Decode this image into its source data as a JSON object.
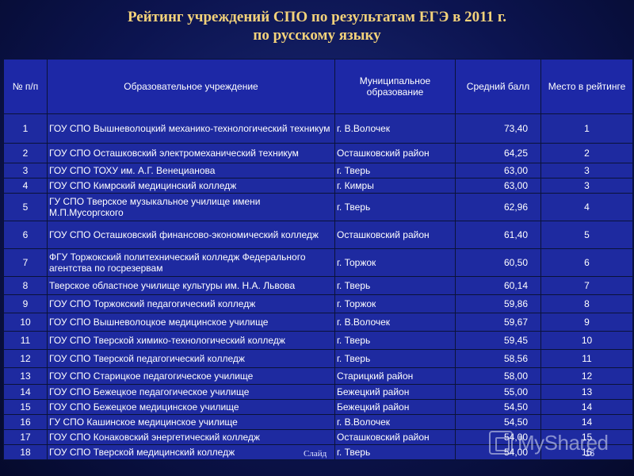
{
  "title": {
    "line1": "Рейтинг учреждений СПО по результатам ЕГЭ в 2011 г.",
    "line2": "по русскому языку"
  },
  "table": {
    "headers": [
      "№ п/п",
      "Образовательное учреждение",
      "Муниципальное образование",
      "Средний балл",
      "Место в рейтинге"
    ],
    "rows": [
      {
        "num": "1",
        "name": "ГОУ СПО Вышневолоцкий механико-технологический техникум",
        "mun": "г. В.Волочек",
        "score": "73,40",
        "place": "1"
      },
      {
        "num": "2",
        "name": "ГОУ СПО Осташковский электромеханический техникум",
        "mun": "Осташковский район",
        "score": "64,25",
        "place": "2"
      },
      {
        "num": "3",
        "name": "ГОУ СПО ТОХУ им. А.Г. Венецианова",
        "mun": "г. Тверь",
        "score": "63,00",
        "place": "3"
      },
      {
        "num": "4",
        "name": "ГОУ СПО Кимрский медицинский колледж",
        "mun": "г. Кимры",
        "score": "63,00",
        "place": "3"
      },
      {
        "num": "5",
        "name": "ГУ СПО Тверское музыкальное училище имени М.П.Мусоргского",
        "mun": "г. Тверь",
        "score": "62,96",
        "place": "4"
      },
      {
        "num": "6",
        "name": "ГОУ СПО Осташковский финансово-экономический колледж",
        "mun": "Осташковский район",
        "score": "61,40",
        "place": "5"
      },
      {
        "num": "7",
        "name": "ФГУ Торжокский политехнический колледж Федерального агентства по госрезервам",
        "mun": "г. Торжок",
        "score": "60,50",
        "place": "6"
      },
      {
        "num": "8",
        "name": "Тверское областное училище культуры им. Н.А. Львова",
        "mun": "г. Тверь",
        "score": "60,14",
        "place": "7"
      },
      {
        "num": "9",
        "name": "ГОУ СПО Торжокский педагогический колледж",
        "mun": "г. Торжок",
        "score": "59,86",
        "place": "8"
      },
      {
        "num": "10",
        "name": "ГОУ СПО Вышневолоцкое медицинское училище",
        "mun": "г. В.Волочек",
        "score": "59,67",
        "place": "9"
      },
      {
        "num": "11",
        "name": "ГОУ СПО Тверской химико-технологический колледж",
        "mun": "г. Тверь",
        "score": "59,45",
        "place": "10"
      },
      {
        "num": "12",
        "name": "ГОУ СПО Тверской педагогический колледж",
        "mun": "г. Тверь",
        "score": "58,56",
        "place": "11"
      },
      {
        "num": "13",
        "name": "ГОУ СПО Старицкое педагогическое училище",
        "mun": "Старицкий район",
        "score": "58,00",
        "place": "12"
      },
      {
        "num": "14",
        "name": "ГОУ СПО Бежецкое педагогическое училище",
        "mun": "Бежецкий район",
        "score": "55,00",
        "place": "13"
      },
      {
        "num": "15",
        "name": "ГОУ СПО Бежецкое медицинское училище",
        "mun": "Бежецкий район",
        "score": "54,50",
        "place": "14"
      },
      {
        "num": "16",
        "name": "ГУ СПО Кашинское медицинское училище",
        "mun": "г. В.Волочек",
        "score": "54,50",
        "place": "14"
      },
      {
        "num": "17",
        "name": "ГОУ СПО Конаковский энергетический колледж",
        "mun": "Осташковский район",
        "score": "54,00",
        "place": "15"
      },
      {
        "num": "18",
        "name": "ГОУ СПО Тверской медицинский колледж",
        "mun": "г. Тверь",
        "score": "54,00",
        "place": "15"
      }
    ]
  },
  "footer": {
    "slide_label": "Слайд",
    "page_number": "16",
    "watermark": "MyShared"
  },
  "colors": {
    "background": "#0c1450",
    "table_cell": "#1e2aa0",
    "title": "#f3d27a"
  }
}
